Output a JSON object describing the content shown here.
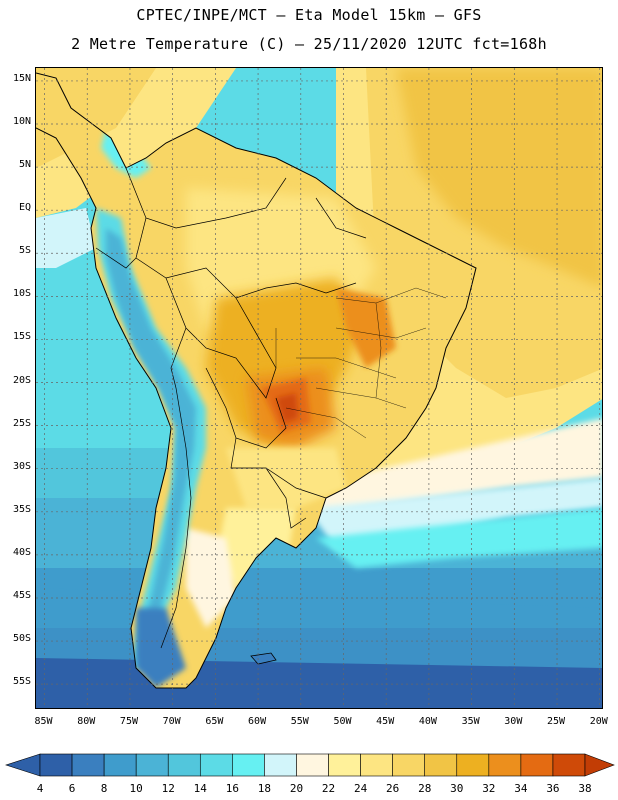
{
  "header": {
    "line1": "CPTEC/INPE/MCT –  Eta Model 15km – GFS",
    "line2": "2 Metre Temperature (C) – 25/11/2020 12UTC fct=168h"
  },
  "map": {
    "lat_labels": [
      "15N",
      "10N",
      "5N",
      "EQ",
      "5S",
      "10S",
      "15S",
      "20S",
      "25S",
      "30S",
      "35S",
      "40S",
      "45S",
      "50S",
      "55S"
    ],
    "lon_labels": [
      "85W",
      "80W",
      "75W",
      "70W",
      "65W",
      "60W",
      "55W",
      "50W",
      "45W",
      "40W",
      "35W",
      "30W",
      "25W",
      "20W"
    ],
    "lat_values": [
      15,
      10,
      5,
      0,
      -5,
      -10,
      -15,
      -20,
      -25,
      -30,
      -35,
      -40,
      -45,
      -50,
      -55
    ],
    "lon_values": [
      -85,
      -80,
      -75,
      -70,
      -65,
      -60,
      -55,
      -50,
      -45,
      -40,
      -35,
      -30,
      -25,
      -20
    ],
    "extent": {
      "lon_min": -86,
      "lon_max": -19.5,
      "lat_min": -58,
      "lat_max": 16.5
    },
    "grid": true
  },
  "colorbar": {
    "labels": [
      "4",
      "6",
      "8",
      "10",
      "12",
      "14",
      "16",
      "18",
      "20",
      "22",
      "24",
      "26",
      "28",
      "30",
      "32",
      "34",
      "36",
      "38"
    ],
    "colors": [
      "#2e60a8",
      "#3a7fbf",
      "#3f9ccc",
      "#4bb3d6",
      "#52c6dc",
      "#5cdbe6",
      "#66f0f2",
      "#d2f5fa",
      "#fff6e0",
      "#fff19a",
      "#fde582",
      "#f8d665",
      "#f1c445",
      "#edb021",
      "#ec8f1d",
      "#e46b12",
      "#cf4a08"
    ],
    "left_arrow_color": "#2e60a8",
    "right_arrow_color": "#c23d05"
  }
}
